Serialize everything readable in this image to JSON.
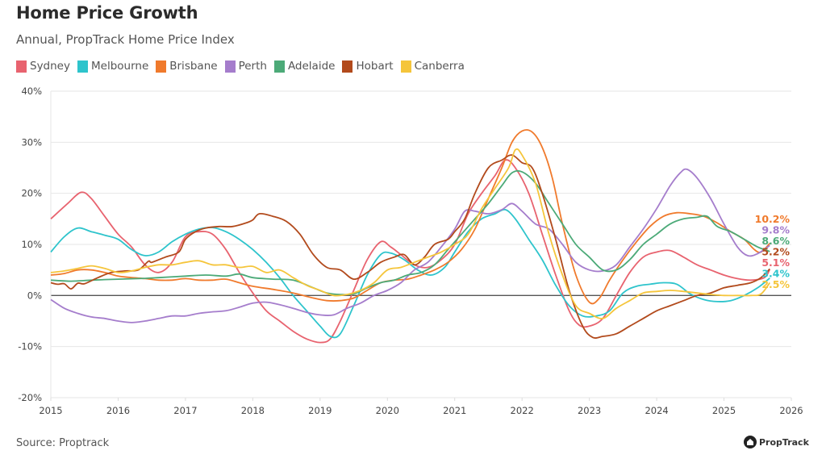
{
  "header": {
    "title": "Home Price Growth",
    "subtitle": "Annual, PropTrack Home Price Index"
  },
  "footer": {
    "source": "Source: Proptrack",
    "brand": "PropTrack"
  },
  "chart_data": {
    "type": "line",
    "title": "Home Price Growth",
    "subtitle": "Annual, PropTrack Home Price Index",
    "xlabel": "",
    "ylabel": "",
    "xlim": [
      2015,
      2026
    ],
    "ylim": [
      -20,
      40
    ],
    "x_ticks": [
      "2015",
      "2016",
      "2017",
      "2018",
      "2019",
      "2020",
      "2021",
      "2022",
      "2023",
      "2024",
      "2025",
      "2026"
    ],
    "y_ticks": [
      "40%",
      "30%",
      "20%",
      "10%",
      "0%",
      "-10%",
      "-20%"
    ],
    "y_tick_values": [
      40,
      30,
      20,
      10,
      0,
      -10,
      -20
    ],
    "grid": true,
    "legend_position": "top-left",
    "series": [
      {
        "name": "Sydney",
        "color": "#e8636f",
        "end_label": "5.1%",
        "x": [
          2015.0,
          2015.25,
          2015.45,
          2015.6,
          2015.8,
          2016.0,
          2016.2,
          2016.4,
          2016.6,
          2016.8,
          2017.0,
          2017.2,
          2017.4,
          2017.6,
          2017.8,
          2018.0,
          2018.2,
          2018.4,
          2018.6,
          2018.8,
          2019.0,
          2019.15,
          2019.3,
          2019.5,
          2019.7,
          2019.9,
          2020.05,
          2020.2,
          2020.4,
          2020.6,
          2020.8,
          2021.0,
          2021.2,
          2021.4,
          2021.6,
          2021.75,
          2021.9,
          2022.1,
          2022.3,
          2022.5,
          2022.7,
          2022.85,
          2023.0,
          2023.2,
          2023.4,
          2023.6,
          2023.8,
          2024.0,
          2024.2,
          2024.4,
          2024.6,
          2024.8,
          2025.0,
          2025.2,
          2025.4,
          2025.6,
          2025.68
        ],
        "y": [
          15,
          18,
          20.2,
          19,
          15.5,
          12,
          9.5,
          6,
          4.5,
          6.5,
          11.5,
          12.5,
          12,
          9,
          4.5,
          0.5,
          -3,
          -5,
          -7,
          -8.5,
          -9.2,
          -8.5,
          -5,
          1,
          7,
          10.5,
          9.5,
          8,
          6,
          5.5,
          7,
          10,
          16,
          20,
          23.5,
          26.5,
          25,
          20,
          12,
          4,
          -3,
          -5.8,
          -6,
          -4.5,
          0,
          4.5,
          7.5,
          8.5,
          8.8,
          7.5,
          6,
          5,
          4,
          3.3,
          3,
          3.5,
          5.1
        ]
      },
      {
        "name": "Melbourne",
        "color": "#2ec4cc",
        "end_label": "3.4%",
        "x": [
          2015.0,
          2015.2,
          2015.4,
          2015.6,
          2015.8,
          2016.0,
          2016.2,
          2016.4,
          2016.6,
          2016.8,
          2017.0,
          2017.2,
          2017.4,
          2017.6,
          2017.8,
          2018.0,
          2018.2,
          2018.4,
          2018.6,
          2018.8,
          2019.0,
          2019.15,
          2019.3,
          2019.5,
          2019.7,
          2019.9,
          2020.05,
          2020.25,
          2020.45,
          2020.65,
          2020.85,
          2021.0,
          2021.2,
          2021.4,
          2021.6,
          2021.75,
          2021.9,
          2022.1,
          2022.3,
          2022.5,
          2022.7,
          2022.9,
          2023.1,
          2023.3,
          2023.5,
          2023.7,
          2023.9,
          2024.1,
          2024.3,
          2024.5,
          2024.7,
          2024.9,
          2025.1,
          2025.3,
          2025.5,
          2025.68
        ],
        "y": [
          8.5,
          11.5,
          13.2,
          12.5,
          11.8,
          11,
          9,
          7.8,
          8.5,
          10.5,
          12,
          13,
          13.3,
          12.5,
          11,
          9,
          6.5,
          3.5,
          0,
          -3,
          -6,
          -8,
          -7.5,
          -2,
          4,
          8,
          8.3,
          7,
          5,
          4,
          5.5,
          8.5,
          12.5,
          15,
          16,
          16.8,
          15,
          11,
          7,
          2,
          -2,
          -4,
          -4,
          -3,
          0.5,
          1.8,
          2.2,
          2.5,
          2.2,
          0.3,
          -0.8,
          -1.2,
          -1,
          0,
          1.5,
          3.4
        ]
      },
      {
        "name": "Brisbane",
        "color": "#f07a2c",
        "end_label": "10.2%",
        "x": [
          2015.0,
          2015.2,
          2015.4,
          2015.6,
          2015.8,
          2016.0,
          2016.2,
          2016.4,
          2016.6,
          2016.8,
          2017.0,
          2017.2,
          2017.4,
          2017.6,
          2017.8,
          2018.0,
          2018.3,
          2018.6,
          2018.9,
          2019.1,
          2019.3,
          2019.5,
          2019.7,
          2019.9,
          2020.1,
          2020.3,
          2020.5,
          2020.7,
          2020.9,
          2021.1,
          2021.3,
          2021.5,
          2021.7,
          2021.85,
          2022.0,
          2022.15,
          2022.3,
          2022.45,
          2022.6,
          2022.8,
          2023.0,
          2023.15,
          2023.3,
          2023.5,
          2023.7,
          2023.9,
          2024.1,
          2024.3,
          2024.5,
          2024.7,
          2024.9,
          2025.1,
          2025.3,
          2025.45,
          2025.55,
          2025.68
        ],
        "y": [
          4,
          4.3,
          5,
          5,
          4.5,
          3.8,
          3.5,
          3.3,
          3,
          3,
          3.3,
          3,
          3,
          3.2,
          2.5,
          1.8,
          1.2,
          0.5,
          -0.5,
          -1,
          -1,
          -0.5,
          1,
          2.5,
          3,
          3.2,
          4,
          5,
          6.5,
          9,
          13,
          19,
          25,
          30,
          32.2,
          32,
          29,
          23,
          14,
          4,
          -1.3,
          -0.5,
          3,
          7,
          10.5,
          13.5,
          15.5,
          16.2,
          16,
          15.5,
          14.2,
          12.5,
          11,
          9,
          8.5,
          10.2
        ]
      },
      {
        "name": "Perth",
        "color": "#a57dcc",
        "end_label": "9.8%",
        "x": [
          2015.0,
          2015.2,
          2015.4,
          2015.6,
          2015.8,
          2016.0,
          2016.2,
          2016.4,
          2016.6,
          2016.8,
          2017.0,
          2017.2,
          2017.4,
          2017.6,
          2017.8,
          2018.0,
          2018.2,
          2018.4,
          2018.6,
          2018.8,
          2019.0,
          2019.2,
          2019.4,
          2019.6,
          2019.8,
          2020.0,
          2020.2,
          2020.4,
          2020.6,
          2020.8,
          2021.0,
          2021.15,
          2021.3,
          2021.5,
          2021.7,
          2021.85,
          2022.0,
          2022.2,
          2022.4,
          2022.6,
          2022.8,
          2023.0,
          2023.2,
          2023.4,
          2023.6,
          2023.8,
          2024.0,
          2024.2,
          2024.35,
          2024.45,
          2024.6,
          2024.8,
          2025.0,
          2025.2,
          2025.35,
          2025.5,
          2025.68
        ],
        "y": [
          -0.8,
          -2.5,
          -3.5,
          -4.2,
          -4.5,
          -5,
          -5.3,
          -5,
          -4.5,
          -4,
          -4,
          -3.5,
          -3.2,
          -3,
          -2.3,
          -1.5,
          -1.3,
          -1.8,
          -2.5,
          -3.3,
          -3.8,
          -3.8,
          -2.5,
          -1.5,
          0,
          1,
          2.5,
          5,
          6.5,
          9.5,
          13,
          16.5,
          16.5,
          16,
          16.8,
          18,
          16.5,
          14,
          13,
          10,
          6.5,
          5,
          4.8,
          6,
          9.5,
          13,
          17,
          21.5,
          24,
          24.7,
          23,
          19,
          14,
          9.5,
          7.8,
          8.2,
          9.8
        ]
      },
      {
        "name": "Adelaide",
        "color": "#4caa78",
        "end_label": "8.6%",
        "x": [
          2015.0,
          2015.3,
          2015.6,
          2016.0,
          2016.3,
          2016.6,
          2017.0,
          2017.3,
          2017.6,
          2017.8,
          2018.0,
          2018.3,
          2018.6,
          2018.9,
          2019.1,
          2019.3,
          2019.5,
          2019.7,
          2019.9,
          2020.1,
          2020.3,
          2020.5,
          2020.7,
          2020.9,
          2021.1,
          2021.3,
          2021.5,
          2021.7,
          2021.85,
          2022.0,
          2022.2,
          2022.4,
          2022.6,
          2022.8,
          2023.0,
          2023.2,
          2023.4,
          2023.6,
          2023.8,
          2024.0,
          2024.2,
          2024.4,
          2024.6,
          2024.75,
          2024.9,
          2025.1,
          2025.3,
          2025.5,
          2025.68
        ],
        "y": [
          3,
          2.8,
          3,
          3.2,
          3.3,
          3.5,
          3.8,
          4,
          3.8,
          4.2,
          3.5,
          3.2,
          3,
          1.5,
          0.5,
          0.2,
          0.3,
          1.5,
          2.5,
          3,
          4,
          4.5,
          6,
          9,
          12,
          15,
          18,
          21.5,
          24,
          24.2,
          22,
          18,
          14,
          10,
          7.5,
          5,
          5,
          7,
          10,
          12,
          14,
          15,
          15.3,
          15.5,
          13.5,
          12.5,
          11,
          9.5,
          8.6
        ]
      },
      {
        "name": "Hobart",
        "color": "#b24a1c",
        "end_label": "5.2%",
        "x": [
          2015.0,
          2015.1,
          2015.2,
          2015.3,
          2015.4,
          2015.5,
          2015.7,
          2015.9,
          2016.1,
          2016.3,
          2016.45,
          2016.5,
          2016.7,
          2016.9,
          2017.0,
          2017.15,
          2017.3,
          2017.5,
          2017.7,
          2017.9,
          2018.0,
          2018.1,
          2018.3,
          2018.5,
          2018.7,
          2018.9,
          2019.1,
          2019.3,
          2019.5,
          2019.7,
          2019.9,
          2020.1,
          2020.25,
          2020.4,
          2020.55,
          2020.7,
          2020.9,
          2021.0,
          2021.15,
          2021.3,
          2021.5,
          2021.7,
          2021.85,
          2022.0,
          2022.15,
          2022.3,
          2022.5,
          2022.7,
          2022.9,
          2023.05,
          2023.2,
          2023.4,
          2023.6,
          2023.8,
          2024.0,
          2024.2,
          2024.4,
          2024.6,
          2024.8,
          2025.0,
          2025.2,
          2025.4,
          2025.55,
          2025.68
        ],
        "y": [
          2.5,
          2.2,
          2.3,
          1.3,
          2.4,
          2.3,
          3.5,
          4.5,
          4.8,
          5,
          6.7,
          6.5,
          7.5,
          8.5,
          11,
          12.5,
          13.2,
          13.5,
          13.5,
          14.2,
          14.8,
          16,
          15.5,
          14.5,
          12,
          8,
          5.5,
          5,
          3.2,
          4.5,
          6.5,
          7.5,
          8,
          6,
          7.5,
          10,
          11,
          12.5,
          15,
          20,
          25,
          26.5,
          27.5,
          26,
          25,
          20,
          11,
          1,
          -6,
          -8.2,
          -8,
          -7.5,
          -6,
          -4.5,
          -3,
          -2,
          -1,
          0,
          0.5,
          1.5,
          2,
          2.5,
          3.5,
          5.2
        ]
      },
      {
        "name": "Canberra",
        "color": "#f5c53b",
        "end_label": "2.5%",
        "x": [
          2015.0,
          2015.2,
          2015.4,
          2015.6,
          2015.8,
          2016.0,
          2016.2,
          2016.4,
          2016.6,
          2016.8,
          2017.0,
          2017.2,
          2017.4,
          2017.6,
          2017.8,
          2018.0,
          2018.2,
          2018.4,
          2018.6,
          2018.8,
          2019.0,
          2019.2,
          2019.4,
          2019.6,
          2019.8,
          2020.0,
          2020.2,
          2020.4,
          2020.6,
          2020.8,
          2021.0,
          2021.2,
          2021.4,
          2021.6,
          2021.8,
          2021.9,
          2022.0,
          2022.2,
          2022.4,
          2022.6,
          2022.8,
          2023.0,
          2023.2,
          2023.4,
          2023.6,
          2023.8,
          2024.0,
          2024.2,
          2024.4,
          2024.6,
          2024.8,
          2025.0,
          2025.2,
          2025.4,
          2025.55,
          2025.68
        ],
        "y": [
          4.5,
          4.8,
          5.3,
          5.8,
          5.3,
          4.5,
          4.8,
          5.5,
          6,
          6,
          6.5,
          6.8,
          6,
          6,
          5.5,
          5.7,
          4.5,
          5,
          3.5,
          2,
          1,
          0,
          0.2,
          1,
          2.5,
          5,
          5.5,
          6.5,
          7.5,
          8.5,
          10,
          12,
          17,
          21,
          25,
          28.5,
          27.5,
          22,
          12,
          4,
          -2,
          -3.5,
          -4.5,
          -2.5,
          -1,
          0.5,
          0.8,
          1,
          0.8,
          0.5,
          0.2,
          0,
          0,
          0,
          0.3,
          2.5
        ]
      }
    ]
  }
}
